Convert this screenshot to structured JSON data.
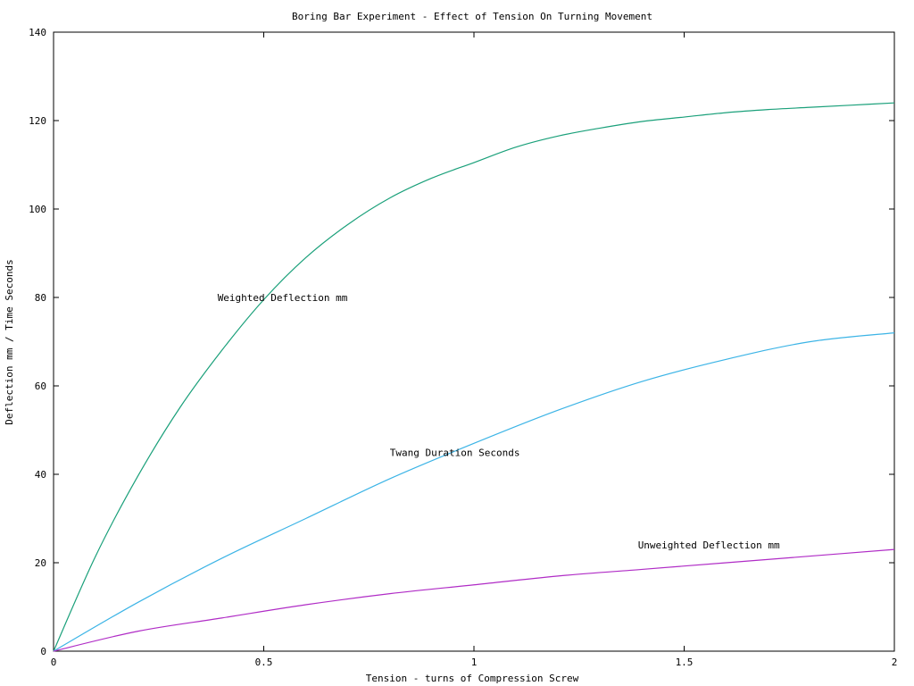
{
  "chart_data": {
    "type": "line",
    "title": "Boring Bar Experiment - Effect of Tension On Turning Movement",
    "xlabel": "Tension - turns of Compression Screw",
    "ylabel": "Deflection mm / Time Seconds",
    "xlim": [
      0,
      2
    ],
    "ylim": [
      0,
      140
    ],
    "xticks": [
      0,
      0.5,
      1,
      1.5,
      2
    ],
    "xtick_labels": [
      "0",
      "0.5",
      "1",
      "1.5",
      "2"
    ],
    "yticks": [
      0,
      20,
      40,
      60,
      80,
      100,
      120,
      140
    ],
    "ytick_labels": [
      "0",
      "20",
      "40",
      "60",
      "80",
      "100",
      "120",
      "140"
    ],
    "grid": false,
    "legend": "none (curves labelled inline)",
    "series": [
      {
        "name": "Weighted Deflection mm",
        "color": "#1aa07a",
        "x": [
          0,
          0.1,
          0.2,
          0.3,
          0.4,
          0.5,
          0.6,
          0.7,
          0.8,
          0.9,
          1.0,
          1.1,
          1.2,
          1.3,
          1.4,
          1.5,
          1.6,
          1.7,
          1.8,
          1.9,
          2.0
        ],
        "y": [
          0,
          21.5,
          39.5,
          55,
          68,
          79.5,
          89,
          96.5,
          102.5,
          107,
          110.5,
          114,
          116.5,
          118.3,
          119.8,
          120.8,
          121.8,
          122.5,
          123,
          123.5,
          124
        ]
      },
      {
        "name": "Twang Duration Seconds",
        "color": "#3cb4e6",
        "x": [
          0,
          0.2,
          0.4,
          0.6,
          0.8,
          1.0,
          1.2,
          1.4,
          1.6,
          1.8,
          2.0
        ],
        "y": [
          0,
          11,
          21,
          30,
          39,
          47,
          54.5,
          61,
          66,
          70,
          72
        ]
      },
      {
        "name": "Unweighted Deflection mm",
        "color": "#b02cc6",
        "x": [
          0,
          0.2,
          0.4,
          0.6,
          0.8,
          1.0,
          1.2,
          1.4,
          1.6,
          1.8,
          2.0
        ],
        "y": [
          0,
          4.5,
          7.5,
          10.5,
          13,
          15,
          17,
          18.5,
          20,
          21.5,
          23
        ]
      }
    ],
    "annotations": [
      {
        "text": "Weighted Deflection mm",
        "x": 0.39,
        "y": 80
      },
      {
        "text": "Twang Duration Seconds",
        "x": 0.8,
        "y": 45
      },
      {
        "text": "Unweighted Deflection mm",
        "x": 1.39,
        "y": 24
      }
    ]
  }
}
